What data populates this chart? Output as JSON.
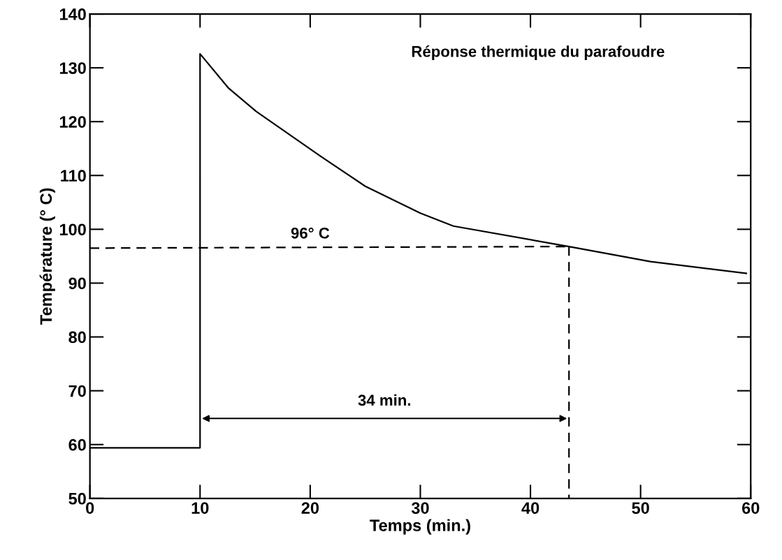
{
  "chart_data": {
    "type": "line",
    "xlabel": "Temps (min.)",
    "ylabel": "Température (° C)",
    "xlim": [
      0,
      60
    ],
    "ylim": [
      50,
      140
    ],
    "xticks": [
      0,
      10,
      20,
      30,
      40,
      50,
      60
    ],
    "yticks": [
      50,
      60,
      70,
      80,
      90,
      100,
      110,
      120,
      130,
      140
    ],
    "series": [
      {
        "color": "#000000",
        "line_style": "solid",
        "x": [
          0,
          10,
          10,
          12.6,
          15.1,
          21,
          25,
          30,
          33,
          43.5,
          50.9,
          59.6
        ],
        "values": [
          59.4,
          59.4,
          132.6,
          126.2,
          121.9,
          113.5,
          108,
          103,
          100.6,
          96.8,
          94,
          91.8
        ]
      },
      {
        "color": "#000000",
        "line_style": "dashed",
        "x": [
          0,
          43.5
        ],
        "values": [
          96.5,
          96.8
        ]
      },
      {
        "color": "#000000",
        "line_style": "dashed",
        "x": [
          43.5,
          43.5
        ],
        "values": [
          96.8,
          50
        ]
      }
    ],
    "annotations": [
      "Réponse thermique du parafoudre",
      {
        "text": "96° C",
        "x": 20,
        "y": 96.5
      },
      "34 min."
    ]
  }
}
